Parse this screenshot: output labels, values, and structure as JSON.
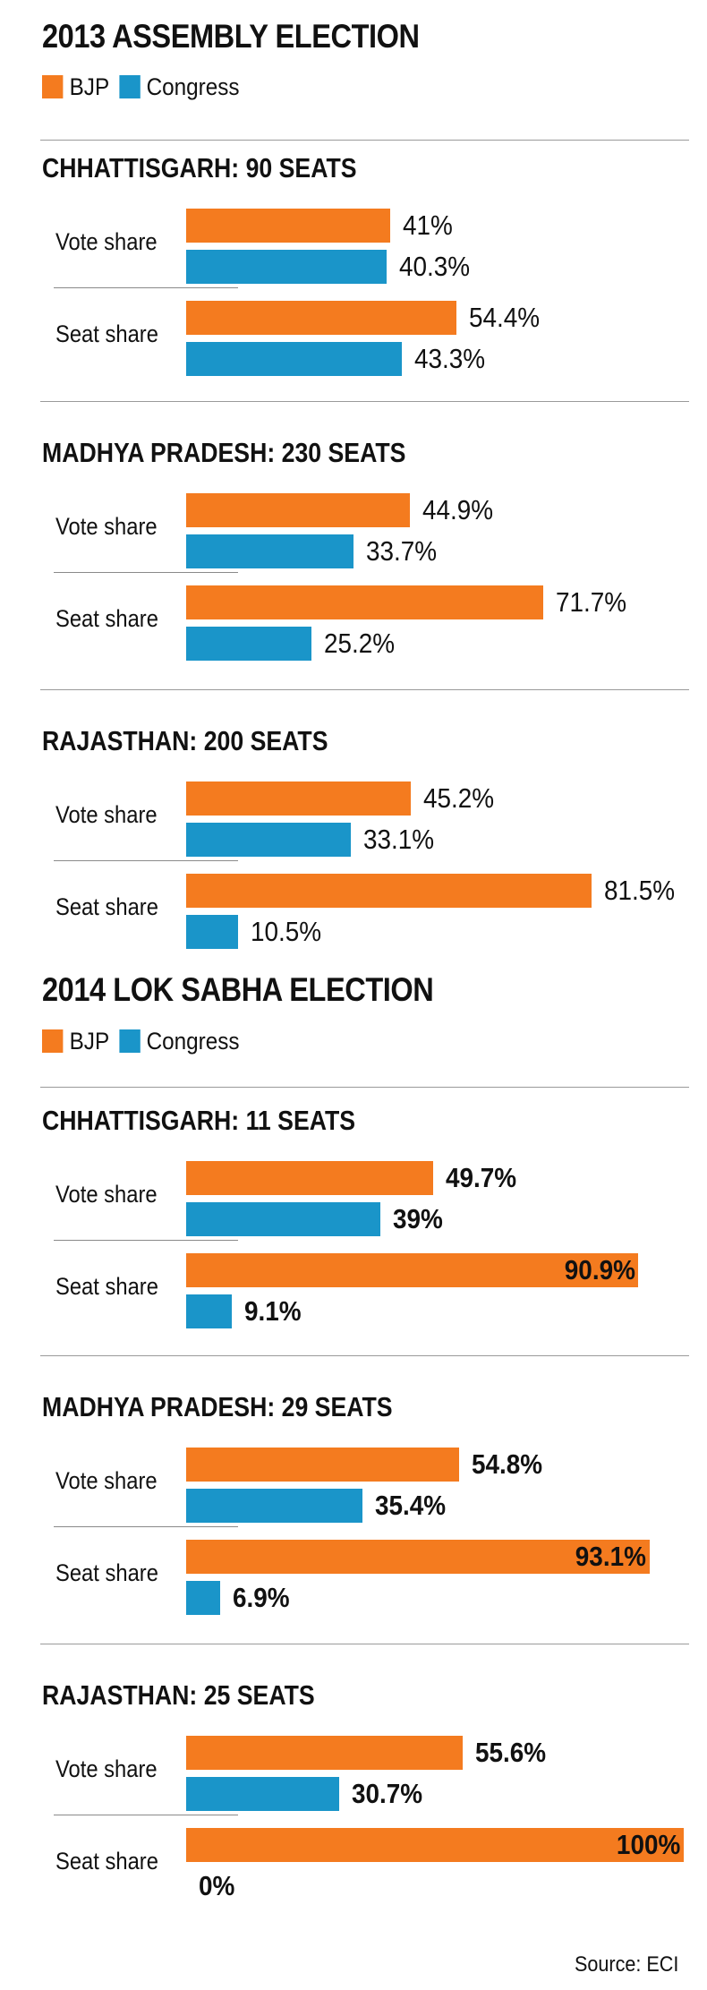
{
  "colors": {
    "BJP": "#f47b1f",
    "Congress": "#1a95c9"
  },
  "source": "Source: ECI",
  "chart_data": [
    {
      "type": "bar",
      "title": "2013 ASSEMBLY ELECTION",
      "legend": [
        "BJP",
        "Congress"
      ],
      "panels": [
        {
          "title": "CHHATTISGARH: 90 SEATS",
          "rows": [
            {
              "label": "Vote share",
              "BJP": 41,
              "Congress": 40.3,
              "BJP_text": "41%",
              "Congress_text": "40.3%"
            },
            {
              "label": "Seat share",
              "BJP": 54.4,
              "Congress": 43.3,
              "BJP_text": "54.4%",
              "Congress_text": "43.3%"
            }
          ]
        },
        {
          "title": "MADHYA PRADESH: 230 SEATS",
          "rows": [
            {
              "label": "Vote share",
              "BJP": 44.9,
              "Congress": 33.7,
              "BJP_text": "44.9%",
              "Congress_text": "33.7%"
            },
            {
              "label": "Seat share",
              "BJP": 71.7,
              "Congress": 25.2,
              "BJP_text": "71.7%",
              "Congress_text": "25.2%"
            }
          ]
        },
        {
          "title": "RAJASTHAN: 200 SEATS",
          "rows": [
            {
              "label": "Vote share",
              "BJP": 45.2,
              "Congress": 33.1,
              "BJP_text": "45.2%",
              "Congress_text": "33.1%"
            },
            {
              "label": "Seat share",
              "BJP": 81.5,
              "Congress": 10.5,
              "BJP_text": "81.5%",
              "Congress_text": "10.5%"
            }
          ]
        }
      ]
    },
    {
      "type": "bar",
      "title": "2014 LOK SABHA ELECTION",
      "legend": [
        "BJP",
        "Congress"
      ],
      "panels": [
        {
          "title": "CHHATTISGARH: 11 SEATS",
          "rows": [
            {
              "label": "Vote share",
              "BJP": 49.7,
              "Congress": 39,
              "BJP_text": "49.7%",
              "Congress_text": "39%"
            },
            {
              "label": "Seat share",
              "BJP": 90.9,
              "Congress": 9.1,
              "BJP_text": "90.9%",
              "Congress_text": "9.1%"
            }
          ]
        },
        {
          "title": "MADHYA PRADESH: 29 SEATS",
          "rows": [
            {
              "label": "Vote share",
              "BJP": 54.8,
              "Congress": 35.4,
              "BJP_text": "54.8%",
              "Congress_text": "35.4%"
            },
            {
              "label": "Seat share",
              "BJP": 93.1,
              "Congress": 6.9,
              "BJP_text": "93.1%",
              "Congress_text": "6.9%"
            }
          ]
        },
        {
          "title": "RAJASTHAN: 25 SEATS",
          "rows": [
            {
              "label": "Vote share",
              "BJP": 55.6,
              "Congress": 30.7,
              "BJP_text": "55.6%",
              "Congress_text": "30.7%"
            },
            {
              "label": "Seat share",
              "BJP": 100,
              "Congress": 0,
              "BJP_text": "100%",
              "Congress_text": "0%"
            }
          ]
        }
      ]
    }
  ]
}
